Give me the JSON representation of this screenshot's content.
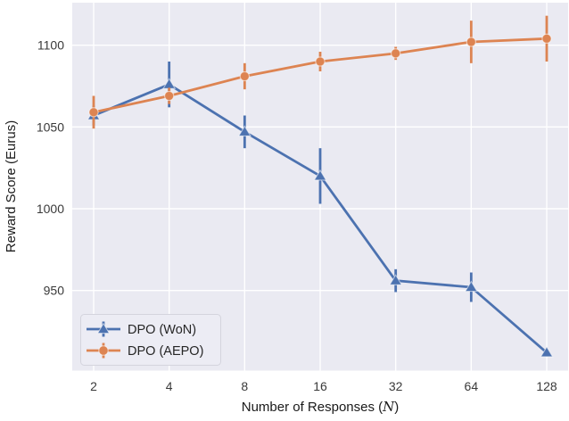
{
  "chart_data": {
    "type": "line",
    "title": "",
    "xlabel_prefix": "Number of Responses (",
    "xlabel_var": "N",
    "xlabel_suffix": ")",
    "ylabel": "Reward Score (Eurus)",
    "x": [
      2,
      4,
      8,
      16,
      32,
      64,
      128
    ],
    "x_tick_labels": [
      "2",
      "4",
      "8",
      "16",
      "32",
      "64",
      "128"
    ],
    "x_scale": "log2",
    "y_ticks": [
      950,
      1000,
      1050,
      1100
    ],
    "y_tick_labels": [
      "950",
      "1000",
      "1050",
      "1100"
    ],
    "ylim": [
      901,
      1126
    ],
    "grid": true,
    "legend_position": "lower-left",
    "series": [
      {
        "name": "DPO (WoN)",
        "color": "#4C72B0",
        "marker": "triangle",
        "values": [
          1057,
          1076,
          1047,
          1020,
          956,
          952,
          912
        ],
        "errors": [
          6,
          14,
          10,
          17,
          7,
          9,
          2
        ]
      },
      {
        "name": "DPO (AEPO)",
        "color": "#DD8452",
        "marker": "circle",
        "values": [
          1059,
          1069,
          1081,
          1090,
          1095,
          1102,
          1104
        ],
        "errors": [
          10,
          5,
          8,
          6,
          4,
          13,
          14
        ]
      }
    ],
    "colors": {
      "figure_bg": "#FFFFFF",
      "plot_bg": "#EAEAF2",
      "grid": "#FFFFFF",
      "legend_bg": "#ECECF4",
      "legend_border": "#D4D4DD"
    }
  }
}
